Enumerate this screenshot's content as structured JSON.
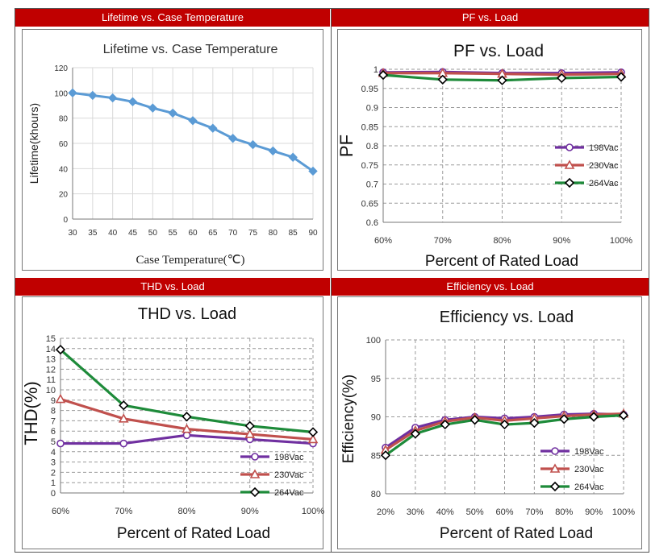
{
  "panels": {
    "lifetime": {
      "header": "Lifetime vs. Case Temperature"
    },
    "pf": {
      "header": "PF vs. Load"
    },
    "thd": {
      "header": "THD vs. Load"
    },
    "eff": {
      "header": "Efficiency vs. Load"
    }
  },
  "colors": {
    "header_bg": "#c00000",
    "lifetime_line": "#5b9bd5",
    "v198": "#7030a0",
    "v230": "#c0504d",
    "v264": "#1e8b3a"
  },
  "chart_data": [
    {
      "id": "lifetime",
      "type": "line",
      "title": "Lifetime vs. Case Temperature",
      "xlabel": "Case Temperature(℃)",
      "ylabel": "Lifetime(khours)",
      "x": [
        30,
        35,
        40,
        45,
        50,
        55,
        60,
        65,
        70,
        75,
        80,
        85,
        90
      ],
      "series": [
        {
          "values": [
            100,
            98,
            96,
            93,
            88,
            84,
            78,
            72,
            64,
            59,
            54,
            49,
            38
          ]
        }
      ],
      "ylim": [
        0,
        120
      ],
      "yticks": [
        0,
        20,
        40,
        60,
        80,
        100,
        120
      ],
      "grid": true
    },
    {
      "id": "pf",
      "type": "line",
      "title": "PF vs. Load",
      "xlabel": "Percent of Rated Load",
      "ylabel": "PF",
      "categories": [
        "60%",
        "70%",
        "80%",
        "90%",
        "100%"
      ],
      "series": [
        {
          "name": "198Vac",
          "values": [
            0.992,
            0.993,
            0.99,
            0.99,
            0.992
          ]
        },
        {
          "name": "230Vac",
          "values": [
            0.99,
            0.99,
            0.988,
            0.986,
            0.988
          ]
        },
        {
          "name": "264Vac",
          "values": [
            0.985,
            0.973,
            0.971,
            0.977,
            0.98
          ]
        }
      ],
      "ylim": [
        0.6,
        1.0
      ],
      "yticks": [
        "0.6",
        "0.65",
        "0.7",
        "0.75",
        "0.8",
        "0.85",
        "0.9",
        "0.95",
        "1"
      ],
      "legend": "center-right",
      "grid": true
    },
    {
      "id": "thd",
      "type": "line",
      "title": "THD vs. Load",
      "xlabel": "Percent of Rated Load",
      "ylabel": "THD(%)",
      "categories": [
        "60%",
        "70%",
        "80%",
        "90%",
        "100%"
      ],
      "series": [
        {
          "name": "198Vac",
          "values": [
            4.8,
            4.8,
            5.6,
            5.2,
            4.8
          ]
        },
        {
          "name": "230Vac",
          "values": [
            9.1,
            7.2,
            6.2,
            5.7,
            5.2
          ]
        },
        {
          "name": "264Vac",
          "values": [
            13.9,
            8.5,
            7.4,
            6.5,
            5.9
          ]
        }
      ],
      "ylim": [
        0,
        15
      ],
      "yticks": [
        "0",
        "1",
        "2",
        "3",
        "4",
        "5",
        "6",
        "7",
        "8",
        "9",
        "10",
        "11",
        "12",
        "13",
        "14",
        "15"
      ],
      "legend": "bottom-right",
      "grid": true
    },
    {
      "id": "eff",
      "type": "line",
      "title": "Efficiency vs. Load",
      "xlabel": "Percent of Rated Load",
      "ylabel": "Efficiency(%)",
      "categories": [
        "20%",
        "30%",
        "40%",
        "50%",
        "60%",
        "70%",
        "80%",
        "90%",
        "100%"
      ],
      "series": [
        {
          "name": "198Vac",
          "values": [
            86.0,
            88.6,
            89.6,
            90.0,
            89.8,
            90.0,
            90.3,
            90.4,
            90.3
          ]
        },
        {
          "name": "230Vac",
          "values": [
            85.7,
            88.2,
            89.4,
            89.9,
            89.5,
            89.8,
            90.1,
            90.3,
            90.4
          ]
        },
        {
          "name": "264Vac",
          "values": [
            85.0,
            87.8,
            89.0,
            89.6,
            89.0,
            89.2,
            89.7,
            90.0,
            90.2
          ]
        }
      ],
      "ylim": [
        80,
        100
      ],
      "yticks": [
        "80",
        "85",
        "90",
        "95",
        "100"
      ],
      "legend": "bottom-right",
      "grid": true
    }
  ]
}
